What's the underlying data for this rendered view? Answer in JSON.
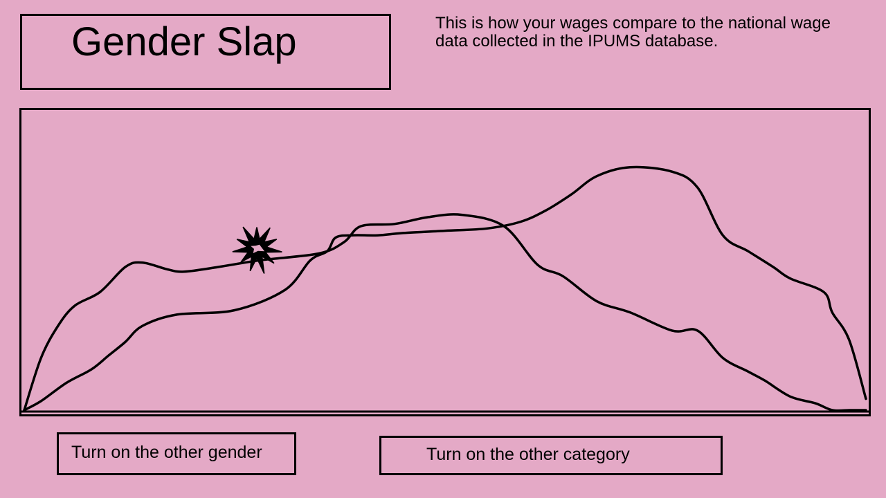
{
  "header": {
    "title": "Gender Slap",
    "description": "This is how your wages compare to the national wage data collected in the IPUMS database."
  },
  "chart_data": {
    "type": "area",
    "title": "",
    "xlabel": "",
    "ylabel": "",
    "series": [
      {
        "x": [
          0,
          2,
          4,
          6,
          9,
          12,
          14,
          17,
          19,
          23,
          28,
          35,
          38,
          40,
          44,
          48,
          52,
          57,
          61,
          64,
          68,
          72,
          77,
          80,
          83,
          86,
          88,
          91,
          94,
          96,
          98,
          99,
          100
        ],
        "values": [
          0,
          23,
          37,
          46,
          52,
          63,
          65,
          62,
          61,
          63,
          66,
          69,
          74,
          81,
          82,
          85,
          86,
          81,
          64,
          59,
          48,
          43,
          35,
          35,
          23,
          17,
          13,
          6,
          3,
          0,
          0,
          0,
          0
        ]
      },
      {
        "x": [
          0,
          2,
          5,
          8,
          10,
          12,
          14,
          18,
          25,
          31,
          34,
          36,
          37,
          39,
          42,
          45,
          50,
          55,
          59,
          62,
          65,
          68,
          72,
          77,
          80,
          83,
          86,
          89,
          91,
          95,
          96,
          98,
          100
        ],
        "values": [
          0,
          4,
          12,
          18,
          24,
          30,
          37,
          42,
          44,
          53,
          66,
          70,
          76,
          77,
          77,
          78,
          79,
          80,
          83,
          88,
          95,
          103,
          107,
          105,
          98,
          77,
          70,
          63,
          58,
          52,
          43,
          31,
          5
        ]
      }
    ],
    "annotation_icon": "collision-burst-icon"
  },
  "buttons": {
    "gender_label": "Turn on the other gender",
    "category_label": "Turn on the other category"
  }
}
